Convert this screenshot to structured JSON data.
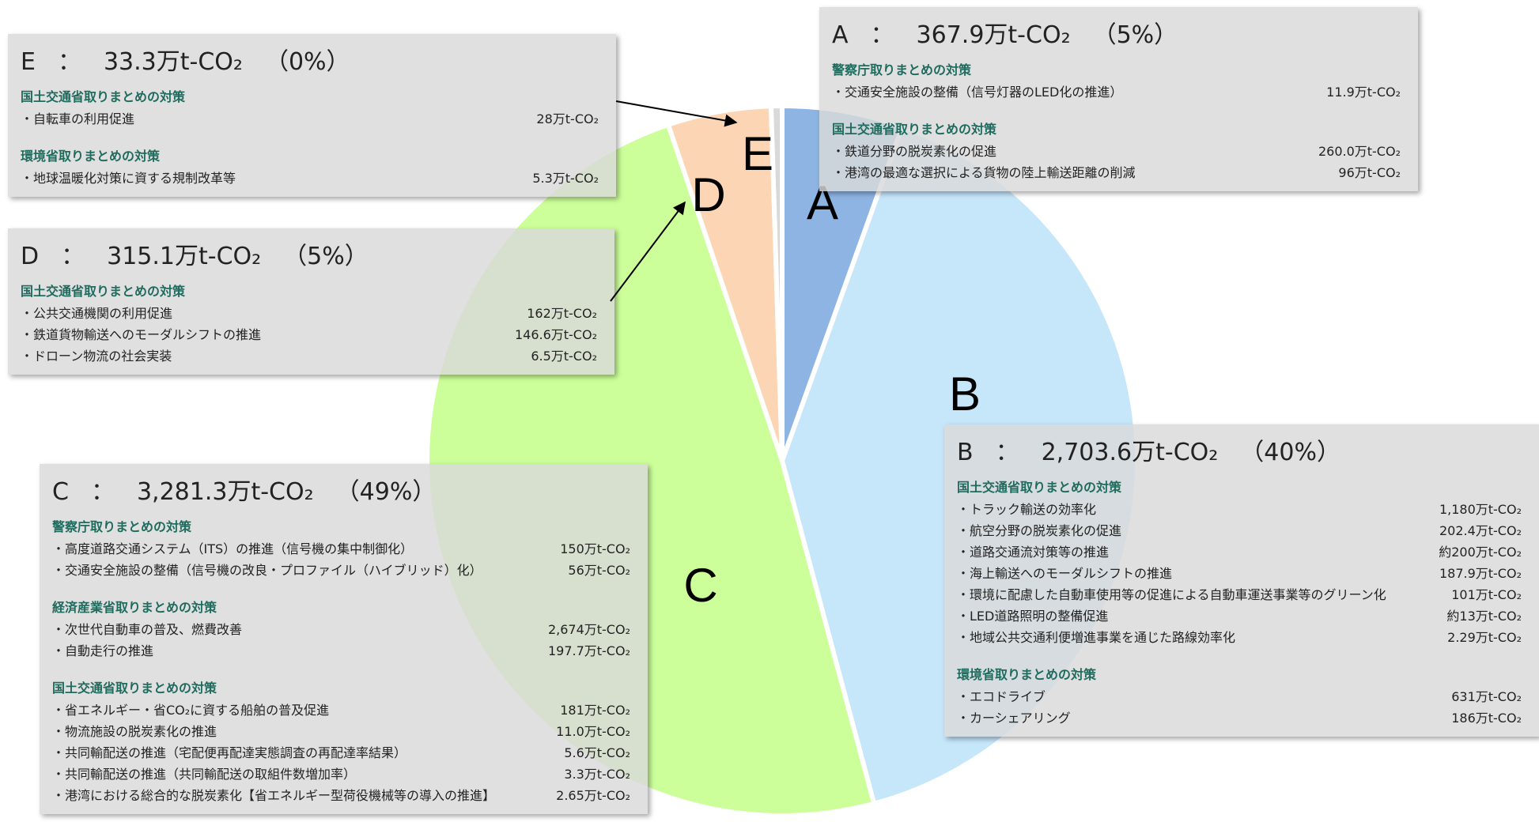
{
  "chart_data": {
    "type": "pie",
    "categories": [
      "A",
      "B",
      "C",
      "D",
      "E"
    ],
    "values": [
      367.9,
      2703.6,
      3281.3,
      315.1,
      33.3
    ],
    "value_labels": [
      "367.9万t-CO₂",
      "2,703.6万t-CO₂",
      "3,281.3万t-CO₂",
      "315.1万t-CO₂",
      "33.3万t-CO₂"
    ],
    "shares": [
      "（5%）",
      "（40%）",
      "（49%）",
      "（5%）",
      "（0%）"
    ],
    "colors": [
      "#8db4e2",
      "#c6e6fa",
      "#ccff99",
      "#fcd5b4",
      "#d9d9d9"
    ],
    "separator": "：",
    "callouts": [
      {
        "groups": [
          {
            "heading": "警察庁取りまとめの対策",
            "items": [
              {
                "name": "・交通安全施設の整備（信号灯器のLED化の推進）",
                "amount": "11.9万t-CO₂"
              }
            ]
          },
          {
            "heading": "国土交通省取りまとめの対策",
            "items": [
              {
                "name": "・鉄道分野の脱炭素化の促進",
                "amount": "260.0万t-CO₂"
              },
              {
                "name": "・港湾の最適な選択による貨物の陸上輸送距離の削減",
                "amount": "96万t-CO₂"
              }
            ]
          }
        ]
      },
      {
        "groups": [
          {
            "heading": "国土交通省取りまとめの対策",
            "items": [
              {
                "name": "・トラック輸送の効率化",
                "amount": "1,180万t-CO₂"
              },
              {
                "name": "・航空分野の脱炭素化の促進",
                "amount": "202.4万t-CO₂"
              },
              {
                "name": "・道路交通流対策等の推進",
                "amount": "約200万t-CO₂"
              },
              {
                "name": "・海上輸送へのモーダルシフトの推進",
                "amount": "187.9万t-CO₂"
              },
              {
                "name": "・環境に配慮した自動車使用等の促進による自動車運送事業等のグリーン化",
                "amount": "101万t-CO₂"
              },
              {
                "name": "・LED道路照明の整備促進",
                "amount": "約13万t-CO₂"
              },
              {
                "name": "・地域公共交通利便増進事業を通じた路線効率化",
                "amount": "2.29万t-CO₂"
              }
            ]
          },
          {
            "heading": "環境省取りまとめの対策",
            "items": [
              {
                "name": "・エコドライブ",
                "amount": "631万t-CO₂"
              },
              {
                "name": "・カーシェアリング",
                "amount": "186万t-CO₂"
              }
            ]
          }
        ]
      },
      {
        "groups": [
          {
            "heading": "警察庁取りまとめの対策",
            "items": [
              {
                "name": "・高度道路交通システム（ITS）の推進（信号機の集中制御化）",
                "amount": "150万t-CO₂"
              },
              {
                "name": "・交通安全施設の整備（信号機の改良・プロファイル（ハイブリッド）化）",
                "amount": "56万t-CO₂"
              }
            ]
          },
          {
            "heading": "経済産業省取りまとめの対策",
            "items": [
              {
                "name": "・次世代自動車の普及、燃費改善",
                "amount": "2,674万t-CO₂"
              },
              {
                "name": "・自動走行の推進",
                "amount": "197.7万t-CO₂"
              }
            ]
          },
          {
            "heading": "国土交通省取りまとめの対策",
            "items": [
              {
                "name": "・省エネルギー・省CO₂に資する船舶の普及促進",
                "amount": "181万t-CO₂"
              },
              {
                "name": "・物流施設の脱炭素化の推進",
                "amount": "11.0万t-CO₂"
              },
              {
                "name": "・共同輸配送の推進（宅配便再配達実態調査の再配達率結果）",
                "amount": "5.6万t-CO₂"
              },
              {
                "name": "・共同輸配送の推進（共同輸配送の取組件数増加率）",
                "amount": "3.3万t-CO₂"
              },
              {
                "name": "・港湾における総合的な脱炭素化【省エネルギー型荷役機械等の導入の推進】",
                "amount": "2.65万t-CO₂"
              }
            ]
          }
        ]
      },
      {
        "groups": [
          {
            "heading": "国土交通省取りまとめの対策",
            "items": [
              {
                "name": "・公共交通機関の利用促進",
                "amount": "162万t-CO₂"
              },
              {
                "name": "・鉄道貨物輸送へのモーダルシフトの推進",
                "amount": "146.6万t-CO₂"
              },
              {
                "name": "・ドローン物流の社会実装",
                "amount": "6.5万t-CO₂"
              }
            ]
          }
        ]
      },
      {
        "groups": [
          {
            "heading": "国土交通省取りまとめの対策",
            "items": [
              {
                "name": "・自転車の利用促進",
                "amount": "28万t-CO₂"
              }
            ]
          },
          {
            "heading": "環境省取りまとめの対策",
            "items": [
              {
                "name": "・地球温暖化対策に資する規制改革等",
                "amount": "5.3万t-CO₂"
              }
            ]
          }
        ]
      }
    ]
  }
}
